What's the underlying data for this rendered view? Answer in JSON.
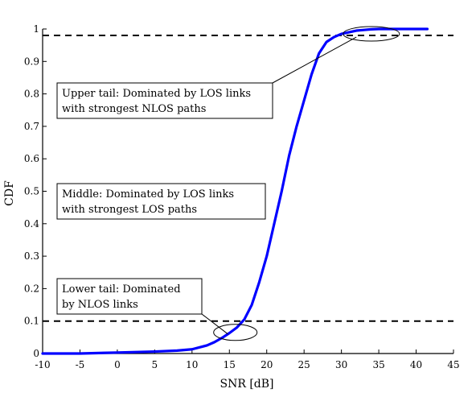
{
  "chart_data": {
    "type": "line",
    "xlabel": "SNR [dB]",
    "ylabel": "CDF",
    "xlim": [
      -10,
      45
    ],
    "ylim": [
      0,
      1
    ],
    "x_ticks": [
      "-10",
      "-5",
      "0",
      "5",
      "10",
      "15",
      "20",
      "25",
      "30",
      "35",
      "40",
      "45"
    ],
    "y_ticks": [
      "0",
      "0.1",
      "0.2",
      "0.3",
      "0.4",
      "0.5",
      "0.6",
      "0.7",
      "0.8",
      "0.9",
      "1"
    ],
    "grid": false,
    "series": [
      {
        "color": "#0000ff",
        "x": [
          -10,
          -5,
          0,
          5,
          8,
          10,
          12,
          13,
          14,
          15,
          16,
          17,
          18,
          19,
          20,
          21,
          22,
          23,
          24,
          25,
          26,
          27,
          28,
          29,
          30,
          31,
          32,
          33,
          34,
          35,
          36,
          38,
          40,
          41.5
        ],
        "y": [
          0.0,
          0.0,
          0.003,
          0.006,
          0.009,
          0.013,
          0.025,
          0.035,
          0.048,
          0.063,
          0.08,
          0.105,
          0.15,
          0.22,
          0.3,
          0.4,
          0.5,
          0.61,
          0.7,
          0.78,
          0.86,
          0.925,
          0.96,
          0.975,
          0.985,
          0.99,
          0.995,
          0.997,
          0.999,
          1.0,
          1.0,
          1.0,
          1.0,
          1.0
        ]
      }
    ],
    "reference_lines": [
      {
        "y": 0.98,
        "style": "dashed",
        "color": "#000000"
      },
      {
        "y": 0.1,
        "style": "dashed",
        "color": "#000000"
      }
    ],
    "annotations": [
      {
        "lines": [
          "Upper tail: Dominated by LOS links",
          "with strongest NLOS paths"
        ],
        "ellipse_center": [
          34,
          0.985
        ],
        "leader_to": [
          32,
          0.975
        ]
      },
      {
        "lines": [
          "Middle: Dominated by LOS links",
          "with strongest LOS paths"
        ]
      },
      {
        "lines": [
          "Lower tail: Dominated",
          "by NLOS links"
        ],
        "ellipse_center": [
          15.8,
          0.065
        ],
        "leader_to": [
          14.8,
          0.06
        ]
      }
    ]
  }
}
